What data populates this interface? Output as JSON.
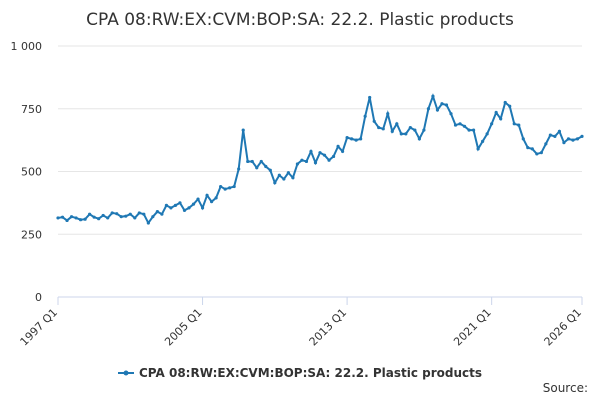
{
  "chart_data": {
    "type": "line",
    "title": "CPA 08:RW:EX:CVM:BOP:SA: 22.2. Plastic products",
    "source": "Source:",
    "categories": [
      "1997 Q1",
      null,
      null,
      null,
      null,
      null,
      null,
      null,
      null,
      null,
      null,
      null,
      null,
      null,
      null,
      null,
      null,
      null,
      null,
      null,
      null,
      null,
      null,
      null,
      null,
      null,
      null,
      null,
      null,
      null,
      null,
      null,
      "2005 Q1",
      null,
      null,
      null,
      null,
      null,
      null,
      null,
      null,
      null,
      null,
      null,
      null,
      null,
      null,
      null,
      null,
      null,
      null,
      null,
      null,
      null,
      null,
      null,
      null,
      null,
      null,
      null,
      null,
      null,
      null,
      null,
      "2013 Q1",
      null,
      null,
      null,
      null,
      null,
      null,
      null,
      null,
      null,
      null,
      null,
      null,
      null,
      null,
      null,
      null,
      null,
      null,
      null,
      null,
      null,
      null,
      null,
      null,
      null,
      null,
      null,
      null,
      null,
      null,
      null,
      "2021 Q1",
      null,
      null,
      null,
      null,
      null,
      null,
      null,
      null,
      null,
      null,
      null,
      null,
      null,
      null,
      null,
      null,
      null,
      null,
      null,
      "2026 Q1"
    ],
    "series": [
      {
        "name": "CPA 08:RW:EX:CVM:BOP:SA: 22.2. Plastic products",
        "color": "#1f78b4",
        "values": [
          315,
          318,
          305,
          320,
          315,
          308,
          310,
          330,
          318,
          312,
          325,
          315,
          335,
          332,
          320,
          322,
          330,
          315,
          335,
          330,
          295,
          320,
          340,
          330,
          365,
          355,
          365,
          375,
          345,
          355,
          370,
          390,
          355,
          405,
          380,
          395,
          440,
          430,
          435,
          440,
          510,
          665,
          540,
          540,
          515,
          540,
          520,
          505,
          455,
          485,
          470,
          495,
          475,
          530,
          545,
          540,
          580,
          535,
          575,
          565,
          545,
          560,
          600,
          580,
          635,
          630,
          625,
          630,
          720,
          795,
          700,
          675,
          670,
          730,
          660,
          690,
          650,
          650,
          675,
          665,
          630,
          665,
          750,
          800,
          745,
          770,
          765,
          730,
          685,
          690,
          680,
          665,
          665,
          590,
          620,
          650,
          690,
          735,
          710,
          775,
          760,
          690,
          685,
          630,
          595,
          590,
          570,
          575,
          610,
          645,
          640,
          660,
          615,
          630,
          625,
          630,
          640
        ]
      }
    ],
    "ylim": [
      0,
      1000
    ],
    "yticks": [
      0,
      250,
      500,
      750,
      {
        "value": 1000,
        "label": "1 000"
      }
    ],
    "grid": true,
    "legend": "bottom"
  }
}
